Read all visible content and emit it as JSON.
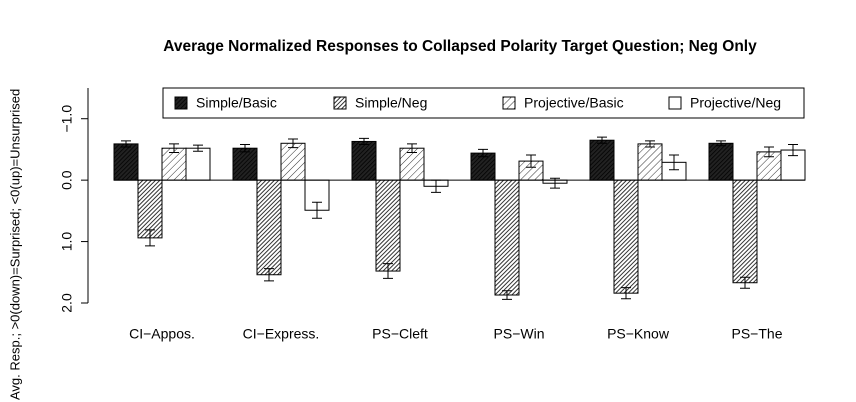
{
  "chart_data": {
    "type": "bar",
    "title": "Average Normalized Responses to Collapsed Polarity Target Question; Neg Only",
    "y_label": "Avg. Resp.; >0(down)=Surprised; <0(up)=Unsurprised",
    "categories": [
      "CI−Appos.",
      "CI−Express.",
      "PS−Cleft",
      "PS−Win",
      "PS−Know",
      "PS−The"
    ],
    "series": [
      {
        "name": "Simple/Basic",
        "color": "#222222",
        "pattern": "solid",
        "values": [
          -0.59,
          -0.52,
          -0.63,
          -0.44,
          -0.65,
          -0.6
        ],
        "errors": [
          0.05,
          0.06,
          0.05,
          0.06,
          0.05,
          0.04
        ]
      },
      {
        "name": "Simple/Neg",
        "color": "#444444",
        "pattern": "dense-hatch",
        "values": [
          0.94,
          1.54,
          1.48,
          1.87,
          1.84,
          1.67
        ],
        "errors": [
          0.13,
          0.1,
          0.12,
          0.07,
          0.09,
          0.09
        ]
      },
      {
        "name": "Projective/Basic",
        "color": "#333333",
        "pattern": "hatch",
        "values": [
          -0.52,
          -0.6,
          -0.52,
          -0.31,
          -0.59,
          -0.46
        ],
        "errors": [
          0.07,
          0.07,
          0.07,
          0.1,
          0.05,
          0.08
        ]
      },
      {
        "name": "Projective/Neg",
        "color": "#ffffff",
        "pattern": "none",
        "values": [
          -0.52,
          0.49,
          0.1,
          0.05,
          -0.29,
          -0.49
        ],
        "errors": [
          0.05,
          0.13,
          0.1,
          0.08,
          0.12,
          0.09
        ]
      }
    ],
    "ylim": [
      2,
      -1.5
    ],
    "yticks": [
      {
        "value": -1,
        "label": "−1.0"
      },
      {
        "value": 0,
        "label": "0.0"
      },
      {
        "value": 1,
        "label": "1.0"
      },
      {
        "value": 2,
        "label": "2.0"
      }
    ],
    "legend": "top"
  }
}
